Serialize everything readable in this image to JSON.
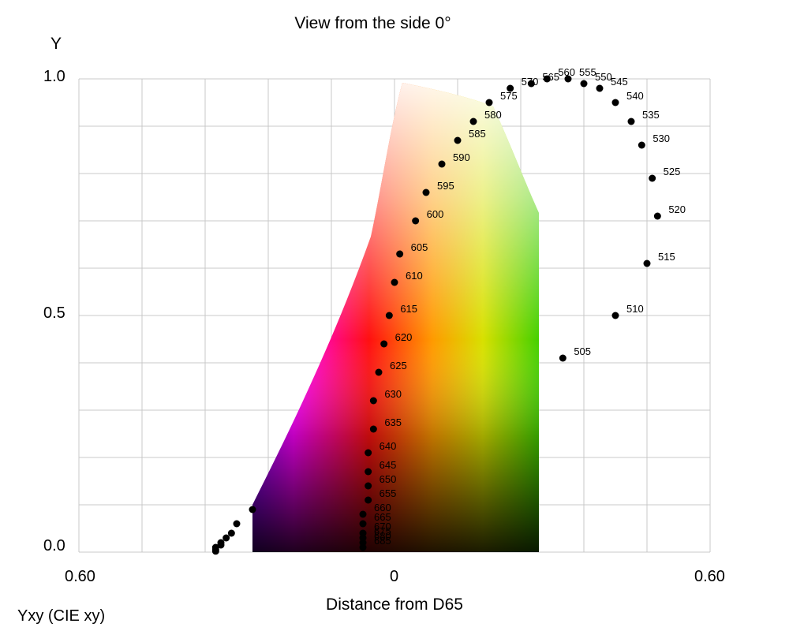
{
  "chart_data": {
    "type": "scatter",
    "title": "View from the side 0°",
    "ylabel": "Y",
    "xlabel": "Distance from D65",
    "color_model": "Yxy (CIE xy)",
    "x_ticks": [
      "0.60",
      "0",
      "0.60"
    ],
    "y_ticks": [
      "1.0",
      "0.5",
      "0.0"
    ],
    "xlim": [
      -0.6,
      0.6
    ],
    "ylim": [
      0,
      1
    ],
    "grid": true,
    "spectral_locus": {
      "name": "spectral locus",
      "points": [
        {
          "wl": "505",
          "x": 0.32,
          "y": 0.41
        },
        {
          "wl": "510",
          "x": 0.42,
          "y": 0.5
        },
        {
          "wl": "515",
          "x": 0.48,
          "y": 0.61
        },
        {
          "wl": "520",
          "x": 0.5,
          "y": 0.71
        },
        {
          "wl": "525",
          "x": 0.49,
          "y": 0.79
        },
        {
          "wl": "530",
          "x": 0.47,
          "y": 0.86
        },
        {
          "wl": "535",
          "x": 0.45,
          "y": 0.91
        },
        {
          "wl": "540",
          "x": 0.42,
          "y": 0.95
        },
        {
          "wl": "545",
          "x": 0.39,
          "y": 0.98
        },
        {
          "wl": "550",
          "x": 0.36,
          "y": 0.99
        },
        {
          "wl": "555",
          "x": 0.33,
          "y": 1.0
        },
        {
          "wl": "560",
          "x": 0.29,
          "y": 1.0
        },
        {
          "wl": "565",
          "x": 0.26,
          "y": 0.99
        },
        {
          "wl": "570",
          "x": 0.22,
          "y": 0.98
        },
        {
          "wl": "575",
          "x": 0.18,
          "y": 0.95
        },
        {
          "wl": "580",
          "x": 0.15,
          "y": 0.91
        },
        {
          "wl": "585",
          "x": 0.12,
          "y": 0.87
        },
        {
          "wl": "590",
          "x": 0.09,
          "y": 0.82
        },
        {
          "wl": "595",
          "x": 0.06,
          "y": 0.76
        },
        {
          "wl": "600",
          "x": 0.04,
          "y": 0.7
        },
        {
          "wl": "605",
          "x": 0.01,
          "y": 0.63
        },
        {
          "wl": "610",
          "x": 0.0,
          "y": 0.57
        },
        {
          "wl": "615",
          "x": -0.01,
          "y": 0.5
        },
        {
          "wl": "620",
          "x": -0.02,
          "y": 0.44
        },
        {
          "wl": "625",
          "x": -0.03,
          "y": 0.38
        },
        {
          "wl": "630",
          "x": -0.04,
          "y": 0.32
        },
        {
          "wl": "635",
          "x": -0.04,
          "y": 0.26
        },
        {
          "wl": "640",
          "x": -0.05,
          "y": 0.21
        },
        {
          "wl": "645",
          "x": -0.05,
          "y": 0.17
        },
        {
          "wl": "650",
          "x": -0.05,
          "y": 0.14
        },
        {
          "wl": "655",
          "x": -0.05,
          "y": 0.11
        },
        {
          "wl": "660",
          "x": -0.06,
          "y": 0.08
        },
        {
          "wl": "665",
          "x": -0.06,
          "y": 0.06
        },
        {
          "wl": "670",
          "x": -0.06,
          "y": 0.04
        },
        {
          "wl": "675",
          "x": -0.06,
          "y": 0.03
        },
        {
          "wl": "680",
          "x": -0.06,
          "y": 0.02
        },
        {
          "wl": "685",
          "x": -0.06,
          "y": 0.01
        }
      ]
    },
    "violet_points": [
      {
        "x": -0.27,
        "y": 0.09
      },
      {
        "x": -0.3,
        "y": 0.06
      },
      {
        "x": -0.31,
        "y": 0.04
      },
      {
        "x": -0.32,
        "y": 0.03
      },
      {
        "x": -0.33,
        "y": 0.02
      },
      {
        "x": -0.33,
        "y": 0.015
      },
      {
        "x": -0.34,
        "y": 0.01
      },
      {
        "x": -0.34,
        "y": 0.005
      },
      {
        "x": -0.34,
        "y": 0.002
      }
    ],
    "colors": {
      "background": "#ffffff",
      "grid": "#c8c8c8",
      "points": "#000000",
      "gamut_magenta": "#ff00ff",
      "gamut_red": "#ff1a1a",
      "gamut_orange": "#ff8c00",
      "gamut_yellow": "#ffff00",
      "gamut_green": "#33cc00",
      "gamut_blue": "#6600ff"
    }
  }
}
